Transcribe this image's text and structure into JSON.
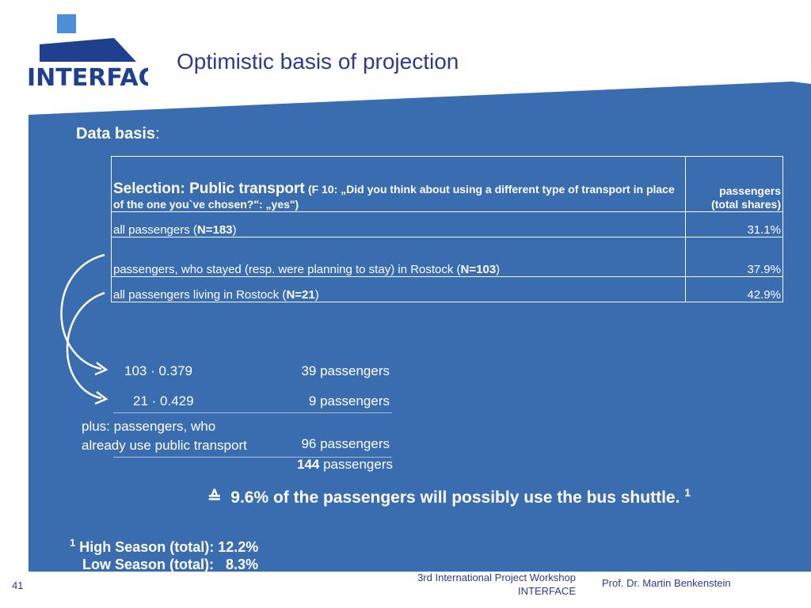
{
  "logo": {
    "text": "INTERFACE"
  },
  "title": "Optimistic basis of projection",
  "data_basis": {
    "label": "Data basis",
    "colon": ":"
  },
  "table": {
    "header": {
      "main": "Selection: Public transport",
      "question": "(F 10: „Did you think about using a different type of transport in place of the one you`ve chosen?\": „yes\")",
      "col2_line1": "passengers",
      "col2_line2": "(total shares)"
    },
    "rows": [
      {
        "pre": "all passengers (",
        "n": "N=183",
        "post": ")",
        "value": "31.1%"
      },
      {
        "pre": "passengers, who stayed (resp. were planning to stay) in  Rostock  (",
        "n": "N=103",
        "post": ")",
        "value": "37.9%"
      },
      {
        "pre": "all passengers living in Rostock (",
        "n": "N=21",
        "post": ")",
        "value": "42.9%"
      }
    ]
  },
  "calc": {
    "row1_expr": "103 · 0.379",
    "row1_result": "39 passengers",
    "row2_expr": "21 · 0.429",
    "row2_result": "9 passengers",
    "plus_line1": "plus: passengers,  who",
    "plus_line2": "already use public transport",
    "plus_result": "96 passengers",
    "total_number": "144",
    "total_unit": " passengers"
  },
  "result": {
    "symbol": "≙",
    "text": "9.6% of the passengers will possibly use the bus shuttle.",
    "footnote_mark": "1"
  },
  "footnote": {
    "mark": "1",
    "high": "High Season (total): 12.2%",
    "low": "Low Season (total):   8.3%"
  },
  "footer": {
    "slide_number": "41",
    "workshop_line1": "3rd International Project Workshop",
    "workshop_line2": "INTERFACE",
    "author": "Prof. Dr. Martin Benkenstein"
  },
  "colors": {
    "panel_blue": "#3a6db0",
    "title_navy": "#2d3b8c",
    "logo_light_blue": "#4a8fd8",
    "logo_dark_blue": "#1f3f8f"
  }
}
